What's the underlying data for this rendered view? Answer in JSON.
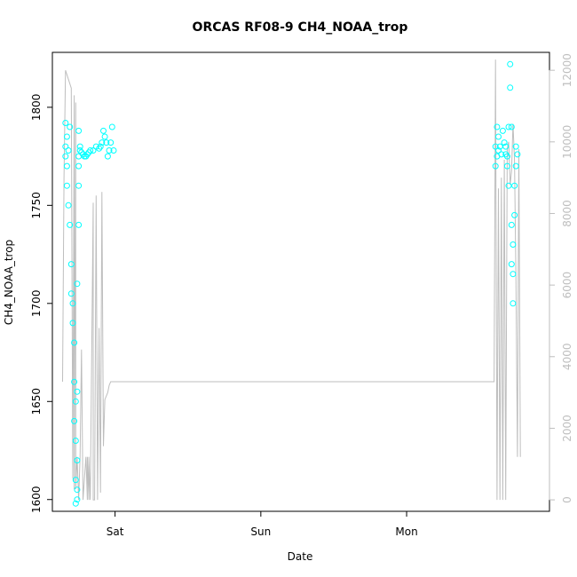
{
  "chart_data": {
    "type": "scatter",
    "title": "ORCAS RF08-9 CH4_NOAA_trop",
    "xlabel": "Date",
    "ylabel": "CH4_NOAA_trop",
    "x_ticks": [
      "Sat",
      "Sun",
      "Mon"
    ],
    "x_tick_values": [
      1.0,
      2.0,
      3.0
    ],
    "xlim": [
      0.57,
      3.98
    ],
    "ylim": [
      1594,
      1828
    ],
    "y_ticks": [
      1600,
      1650,
      1700,
      1750,
      1800
    ],
    "y2lim": [
      -320,
      12500
    ],
    "y2_ticks": [
      0,
      2000,
      4000,
      6000,
      8000,
      10000,
      12000
    ],
    "grid": false,
    "colors": {
      "points": "#00FFFF",
      "altitude_line": "#BEBEBE",
      "right_axis": "#BEBEBE"
    },
    "series": [
      {
        "kind": "points",
        "x": [
          0.66,
          0.66,
          0.66,
          0.67,
          0.67,
          0.67,
          0.68,
          0.68,
          0.69,
          0.69,
          0.7,
          0.7,
          0.71,
          0.71,
          0.72,
          0.72,
          0.72,
          0.73,
          0.73,
          0.73,
          0.73,
          0.74,
          0.74,
          0.74,
          0.74,
          0.74,
          0.75,
          0.75,
          0.75,
          0.75,
          0.75,
          0.76,
          0.76,
          0.77,
          0.78,
          0.79,
          0.8,
          0.81,
          0.82,
          0.83,
          0.85,
          0.87,
          0.89,
          0.9,
          0.91,
          0.92,
          0.93,
          0.94,
          0.95,
          0.96,
          0.97,
          0.98,
          0.99,
          3.61,
          3.61,
          3.62,
          3.62,
          3.63,
          3.63,
          3.64,
          3.65,
          3.66,
          3.67,
          3.68,
          3.68,
          3.69,
          3.69,
          3.7,
          3.7,
          3.71,
          3.71,
          3.72,
          3.72,
          3.72,
          3.73,
          3.73,
          3.73,
          3.74,
          3.74,
          3.75,
          3.75,
          3.76
        ],
        "y": [
          1780,
          1792,
          1775,
          1785,
          1770,
          1760,
          1778,
          1750,
          1790,
          1740,
          1720,
          1705,
          1690,
          1700,
          1680,
          1660,
          1640,
          1630,
          1650,
          1610,
          1598,
          1600,
          1605,
          1620,
          1655,
          1710,
          1740,
          1760,
          1770,
          1788,
          1775,
          1780,
          1778,
          1777,
          1776,
          1775,
          1775,
          1776,
          1777,
          1778,
          1778,
          1780,
          1779,
          1780,
          1782,
          1788,
          1785,
          1782,
          1775,
          1778,
          1782,
          1790,
          1778,
          1780,
          1770,
          1790,
          1775,
          1785,
          1778,
          1780,
          1776,
          1788,
          1782,
          1776,
          1780,
          1775,
          1770,
          1790,
          1760,
          1822,
          1810,
          1790,
          1740,
          1720,
          1700,
          1730,
          1715,
          1760,
          1745,
          1780,
          1770,
          1776
        ]
      },
      {
        "kind": "line",
        "axis": "right",
        "x": [
          0.64,
          0.65,
          0.66,
          0.7,
          0.71,
          0.72,
          0.72,
          0.73,
          0.73,
          0.74,
          0.75,
          0.76,
          0.77,
          0.78,
          0.8,
          0.81,
          0.81,
          0.82,
          0.82,
          0.83,
          0.85,
          0.85,
          0.86,
          0.87,
          0.88,
          0.89,
          0.9,
          0.91,
          0.92,
          0.93,
          0.95,
          0.96,
          0.97,
          3.6,
          3.61,
          3.62,
          3.63,
          3.64,
          3.65,
          3.66,
          3.67,
          3.68,
          3.69,
          3.7,
          3.71,
          3.72,
          3.73,
          3.74,
          3.75,
          3.76,
          3.77,
          3.78
        ],
        "y": [
          3300,
          9000,
          12000,
          11500,
          600,
          11300,
          300,
          11100,
          300,
          1200,
          0,
          1200,
          4200,
          0,
          1200,
          0,
          1200,
          0,
          1200,
          0,
          8300,
          0,
          0,
          8500,
          0,
          4800,
          200,
          8600,
          1500,
          2800,
          3000,
          3200,
          3300,
          3300,
          12300,
          0,
          8700,
          0,
          9000,
          0,
          9500,
          0,
          9800,
          10000,
          8800,
          9200,
          10500,
          9500,
          6200,
          1200,
          9800,
          1200
        ]
      }
    ]
  }
}
